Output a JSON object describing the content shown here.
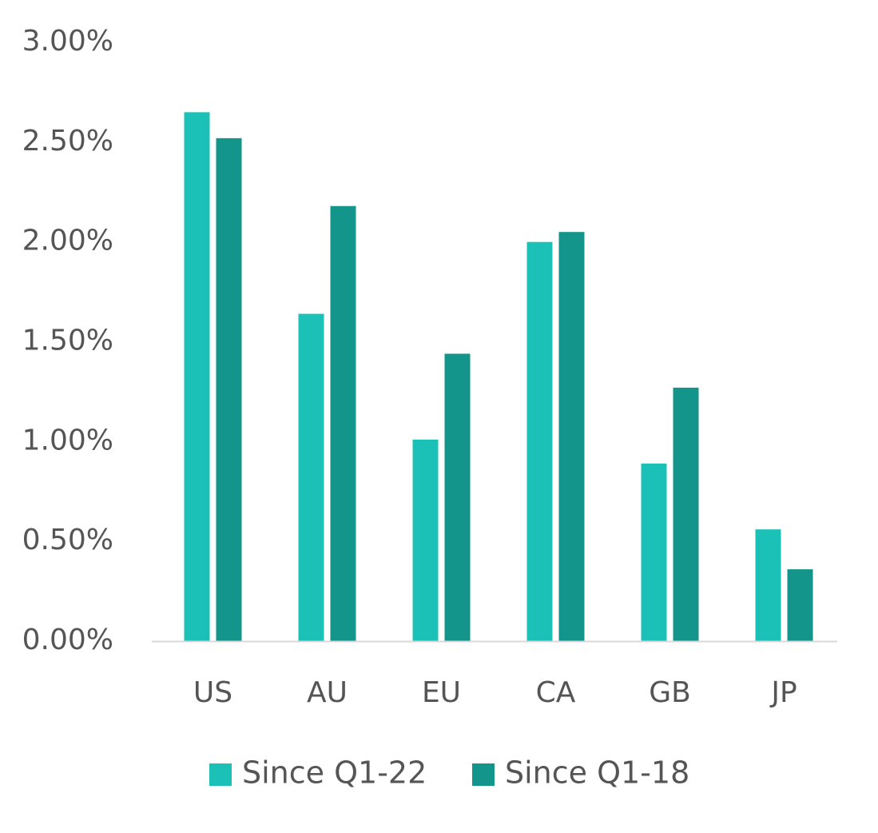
{
  "chart_data": {
    "type": "bar",
    "title": "",
    "xlabel": "",
    "ylabel": "",
    "categories": [
      "US",
      "AU",
      "EU",
      "CA",
      "GB",
      "JP"
    ],
    "series": [
      {
        "name": "Since Q1-22",
        "color": "#1bc0b7",
        "values": [
          2.65,
          1.64,
          1.01,
          2.0,
          0.89,
          0.56
        ]
      },
      {
        "name": "Since Q1-18",
        "color": "#13958b",
        "values": [
          2.52,
          2.18,
          1.44,
          2.05,
          1.27,
          0.36
        ]
      }
    ],
    "ylim": [
      0,
      3
    ],
    "ytick_values": [
      0,
      0.5,
      1,
      1.5,
      2,
      2.5,
      3
    ],
    "ytick_labels": [
      "0.00%",
      "0.50%",
      "1.00%",
      "1.50%",
      "2.00%",
      "2.50%",
      "3.00%"
    ],
    "grid": false,
    "legend_position": "bottom",
    "axis_color": "#d9d9d9",
    "text_color": "#555555"
  }
}
